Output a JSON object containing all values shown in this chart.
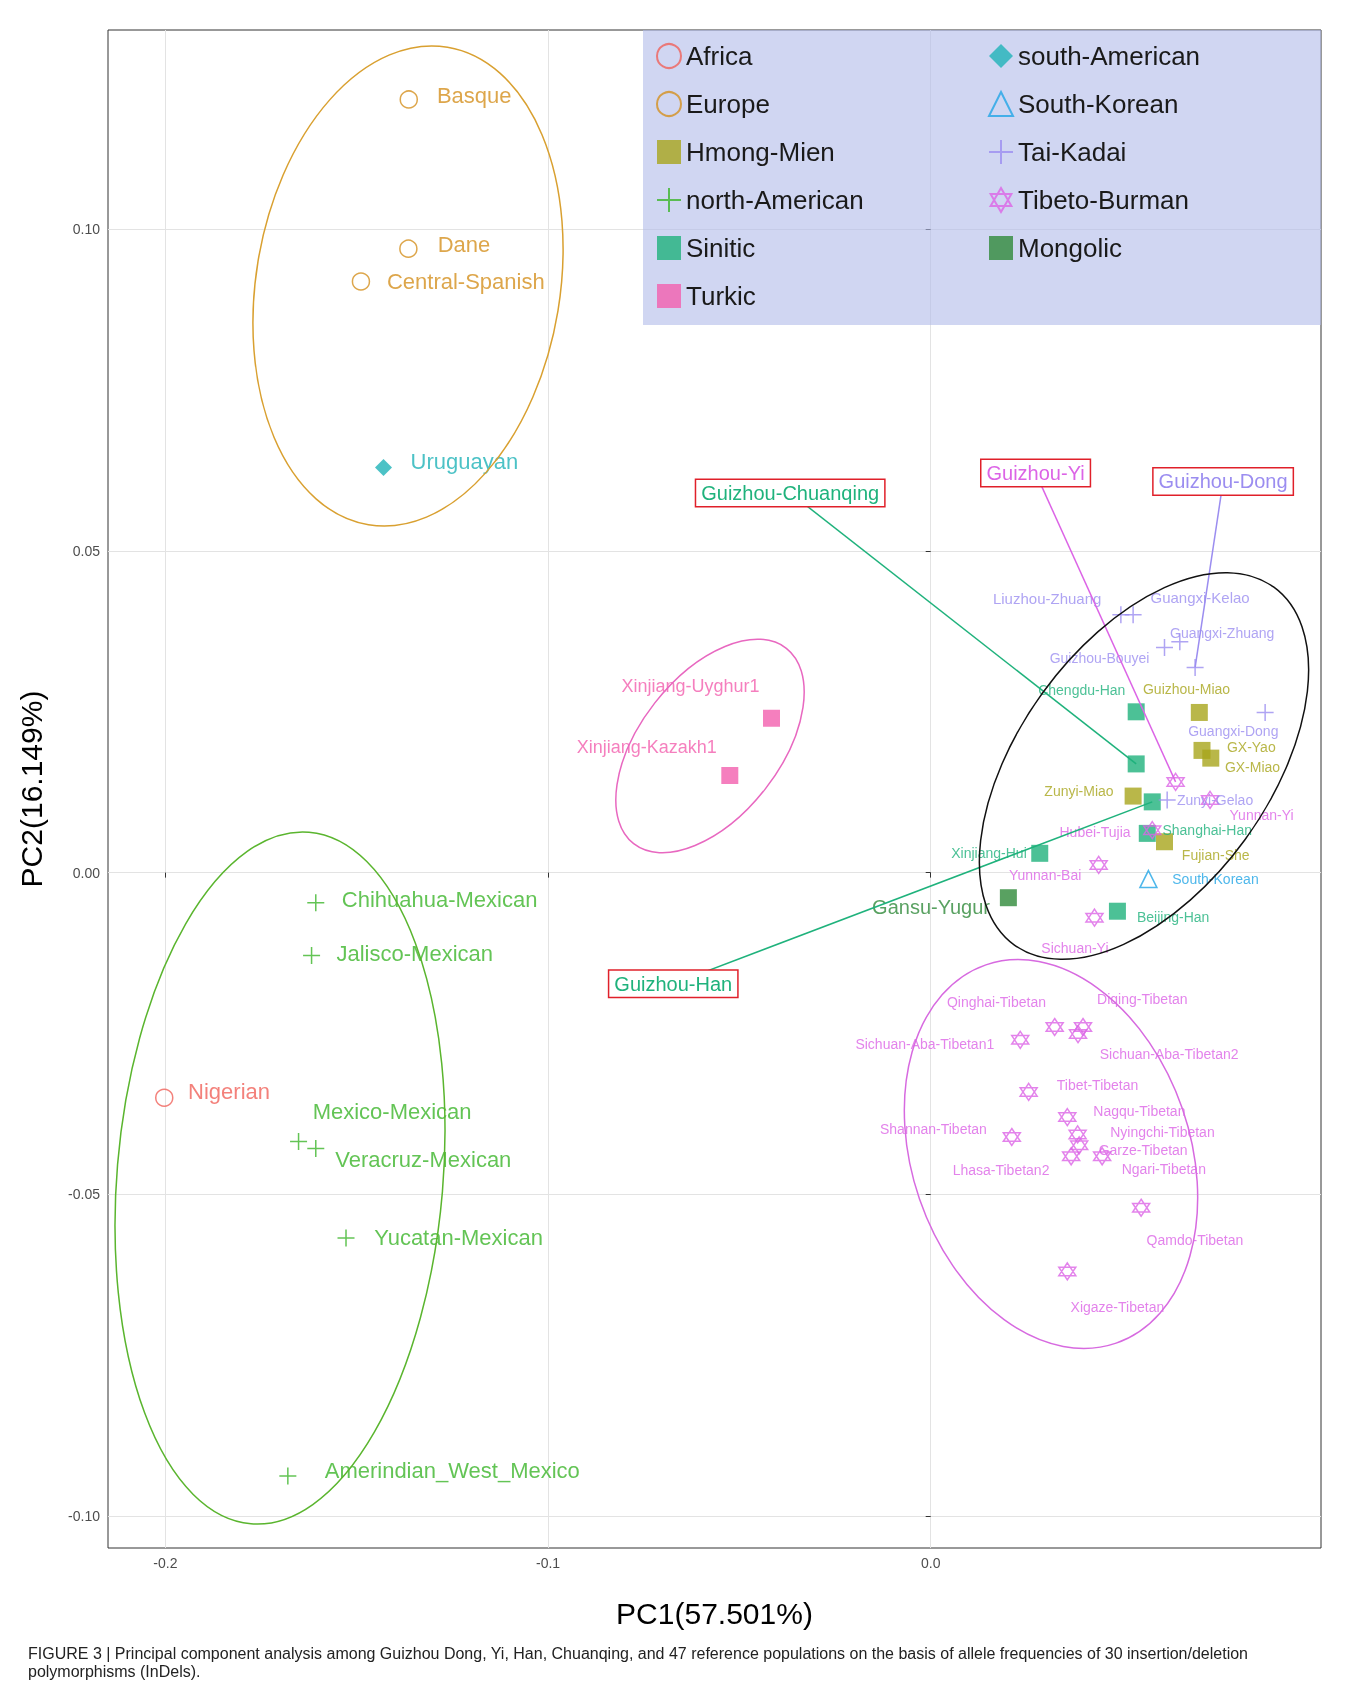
{
  "chart_data": {
    "type": "scatter",
    "xlabel": "PC1(57.501%)",
    "ylabel": "PC2(16.149%)",
    "xlim": [
      -0.215,
      0.102
    ],
    "ylim": [
      -0.105,
      0.131
    ],
    "xticks": [
      {
        "value": -0.2,
        "label": "-0.2"
      },
      {
        "value": -0.1,
        "label": "-0.1"
      },
      {
        "value": 0,
        "label": "0.0"
      }
    ],
    "yticks": [
      {
        "value": -0.1,
        "label": "-0.10"
      },
      {
        "value": -0.05,
        "label": "-0.05"
      },
      {
        "value": 0,
        "label": "0.00"
      },
      {
        "value": 0.05,
        "label": "0.05"
      },
      {
        "value": 0.1,
        "label": "0.10"
      }
    ],
    "grid": true,
    "legend": "top right",
    "series": [
      {
        "name": "Africa",
        "color": "#f0625a",
        "marker": "circle",
        "x": [
          -0.2003
        ],
        "values": [
          -0.035
        ],
        "value_labels": [
          "Nigerian"
        ]
      },
      {
        "name": "Europe",
        "color": "#d4901e",
        "marker": "circle",
        "x": [
          -0.1364,
          -0.1365,
          -0.1489
        ],
        "values": [
          0.1202,
          0.097,
          0.0919
        ],
        "value_labels": [
          "Basque",
          "Dane",
          "Central-Spanish"
        ]
      },
      {
        "name": "Hmong-Mien",
        "color": "#a8a51c",
        "marker": "square",
        "x": [
          0.0702,
          0.0709,
          0.0732,
          0.0529,
          0.0611
        ],
        "values": [
          0.0249,
          0.019,
          0.0178,
          0.0119,
          0.0048
        ],
        "value_labels": [
          "Guizhou-Miao",
          "GX-Yao",
          "GX-Miao",
          "Zunyi-Miao",
          "Fujian-She"
        ]
      },
      {
        "name": "north-American",
        "color": "#3cb52a",
        "marker": "cross",
        "x": [
          -0.1607,
          -0.1618,
          -0.1652,
          -0.1607,
          -0.1528,
          -0.168
        ],
        "values": [
          -0.0047,
          -0.0129,
          -0.0418,
          -0.0429,
          -0.0568,
          -0.0938
        ],
        "value_labels": [
          "Chihuahua-Mexican",
          "Jalisco-Mexican",
          "Mexico-Mexican",
          "Veracruz-Mexican",
          "Yucatan-Mexican",
          "Amerindian_West_Mexico"
        ]
      },
      {
        "name": "Sinitic",
        "color": "#1fb27c",
        "marker": "square",
        "x": [
          0.0537,
          0.0537,
          0.0579,
          0.0566,
          0.0285,
          0.0488
        ],
        "values": [
          0.025,
          0.0169,
          0.011,
          0.0061,
          0.003,
          -0.006
        ],
        "value_labels": [
          "Chengdu-Han",
          null,
          null,
          "Shanghai-Han",
          "Xinjiang-Hui",
          "Beijing-Han"
        ]
      },
      {
        "name": "Turkic",
        "color": "#f25fae",
        "marker": "square",
        "x": [
          -0.0416,
          -0.0525
        ],
        "values": [
          0.024,
          0.0151
        ],
        "value_labels": [
          "Xinjiang-Uyghur1",
          "Xinjiang-Kazakh1"
        ]
      },
      {
        "name": "south-American",
        "color": "#1fb3b8",
        "marker": "diamond",
        "x": [
          -0.143
        ],
        "values": [
          0.063
        ],
        "value_labels": [
          "Uruguayan"
        ]
      },
      {
        "name": "South-Korean",
        "color": "#21a5e6",
        "marker": "triangle",
        "x": [
          0.0569
        ],
        "values": [
          -0.001
        ],
        "value_labels": [
          "South-Korean"
        ]
      },
      {
        "name": "Tai-Kadai",
        "color": "#9b8df0",
        "marker": "cross",
        "x": [
          0.0497,
          0.0529,
          0.0651,
          0.0611,
          0.0691,
          0.0874,
          0.0618
        ],
        "values": [
          0.0401,
          0.0401,
          0.0359,
          0.035,
          0.0319,
          0.0249,
          0.0113
        ],
        "value_labels": [
          "Liuzhou-Zhuang",
          "Guangxi-Kelao",
          "Guangxi-Zhuang",
          "Guizhou-Bouyei",
          null,
          "Guangxi-Dong",
          "Zunyi-Gelao"
        ]
      },
      {
        "name": "Tibeto-Burman",
        "color": "#dc64e6",
        "marker": "star",
        "x": [
          0.064,
          0.073,
          0.0579,
          0.0439,
          0.0428,
          0.0234,
          0.0324,
          0.0398,
          0.0385,
          0.0256,
          0.0357,
          0.0384,
          0.0212,
          0.0388,
          0.0367,
          0.0448,
          0.055,
          0.0357
        ],
        "values": [
          0.0141,
          0.0113,
          0.0066,
          0.0012,
          -0.007,
          -0.026,
          -0.024,
          -0.024,
          -0.0251,
          -0.0341,
          -0.038,
          -0.0407,
          -0.0411,
          -0.0424,
          -0.0441,
          -0.0441,
          -0.0521,
          -0.062
        ],
        "value_labels": [
          null,
          "Yunnan-Yi",
          "Hubei-Tujia",
          "Yunnan-Bai",
          "Sichuan-Yi",
          "Sichuan-Aba-Tibetan1",
          "Qinghai-Tibetan",
          "Diqing-Tibetan",
          "Sichuan-Aba-Tibetan2",
          "Tibet-Tibetan",
          "Nagqu-Tibetan",
          "Nyingchi-Tibetan",
          "Shannan-Tibetan",
          "Garze-Tibetan",
          "Lhasa-Tibetan2",
          "Ngari-Tibetan",
          "Qamdo-Tibetan",
          "Xigaze-Tibetan"
        ]
      },
      {
        "name": "Mongolic",
        "color": "#2f8a3a",
        "marker": "square",
        "x": [
          0.0203
        ],
        "values": [
          -0.0039
        ],
        "value_labels": [
          "Gansu-Yugur"
        ]
      }
    ],
    "annotations": [
      {
        "text": "Guizhou-Chuanqing",
        "x": 0.0537,
        "y": 0.0169
      },
      {
        "text": "Guizhou-Yi",
        "x": 0.064,
        "y": 0.0141
      },
      {
        "text": "Guizhou-Dong",
        "x": 0.0691,
        "y": 0.0319
      },
      {
        "text": "Guizhou-Han",
        "x": 0.0579,
        "y": 0.011
      },
      "FIGURE 3 | Principal component analysis among Guizhou Dong, Yi, Han, Chuanqing, and 47 reference populations on the basis of allele frequencies of 30 insertion/deletion polymorphisms (InDels)."
    ]
  }
}
